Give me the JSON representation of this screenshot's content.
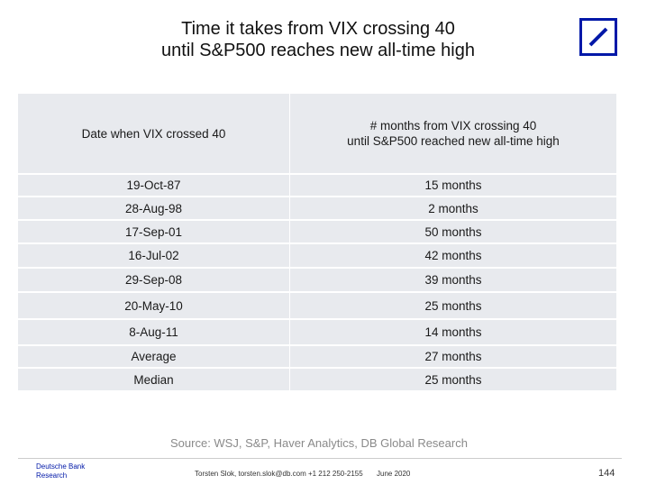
{
  "title": {
    "line1": "Time it takes from VIX crossing 40",
    "line2": "until S&P500 reaches new all-time high"
  },
  "logo": {
    "icon": "deutsche-bank-logo",
    "color": "#0018A8"
  },
  "table": {
    "headers": [
      "Date when VIX crossed 40",
      [
        "# months from VIX crossing 40",
        "until S&P500 reached new all-time high"
      ]
    ],
    "rows": [
      [
        "19-Oct-87",
        "15 months"
      ],
      [
        "28-Aug-98",
        "2 months"
      ],
      [
        "17-Sep-01",
        "50 months"
      ],
      [
        "16-Jul-02",
        "42 months"
      ],
      [
        "29-Sep-08",
        "39 months"
      ],
      [
        "20-May-10",
        "25 months"
      ],
      [
        "8-Aug-11",
        "14 months"
      ],
      [
        "Average",
        "27 months"
      ],
      [
        "Median",
        "25 months"
      ]
    ]
  },
  "source": "Source:  WSJ, S&P, Haver Analytics, DB Global Research",
  "footer": {
    "brand_line1": "Deutsche Bank",
    "brand_line2": "Research",
    "contact": "Torsten Slok, torsten.slok@db.com +1 212 250-2155",
    "date": "June 2020",
    "page": "144"
  }
}
